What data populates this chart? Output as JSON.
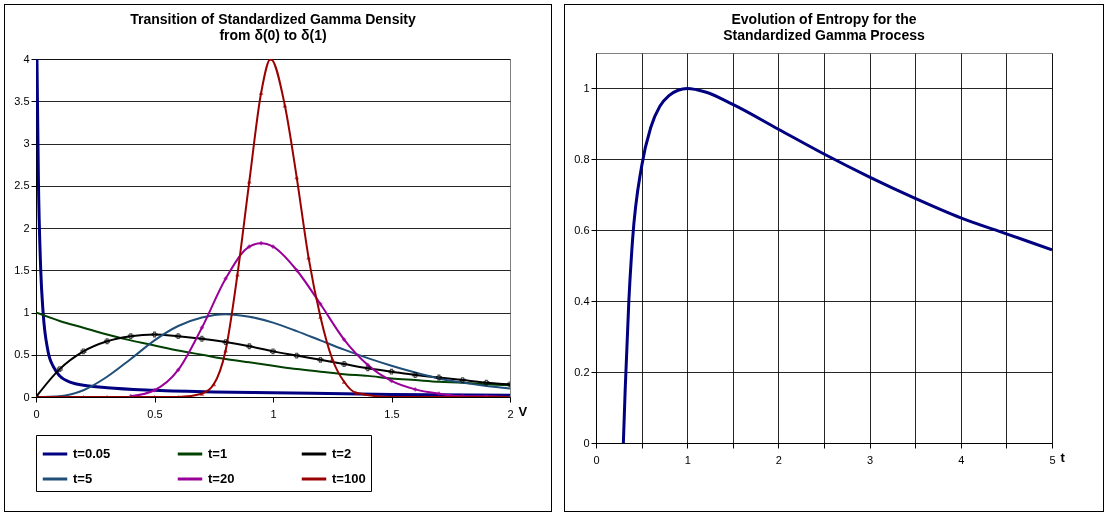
{
  "chart_data": [
    {
      "type": "line",
      "title": "Transition of Standardized Gamma Density\nfrom δ(0) to δ(1)",
      "xlabel": "V",
      "xlim": [
        0,
        2
      ],
      "xticks": [
        0,
        0.5,
        1,
        1.5,
        2
      ],
      "ylim": [
        0,
        4
      ],
      "yticks": [
        0,
        0.5,
        1,
        1.5,
        2,
        2.5,
        3,
        3.5,
        4
      ],
      "grid": "y",
      "legend": "bottom",
      "series": [
        {
          "name": "t=0.05",
          "color": "#000080",
          "marker": "none",
          "x": [
            0.004,
            0.01,
            0.02,
            0.03,
            0.05,
            0.075,
            0.1,
            0.15,
            0.2,
            0.3,
            0.5,
            0.75,
            1,
            1.5,
            2
          ],
          "values": [
            4,
            2.6,
            1.5,
            1.0,
            0.55,
            0.35,
            0.25,
            0.17,
            0.14,
            0.11,
            0.08,
            0.06,
            0.05,
            0.03,
            0.02
          ]
        },
        {
          "name": "t=1",
          "color": "#004000",
          "marker": "none",
          "x": [
            0,
            0.1,
            0.2,
            0.3,
            0.4,
            0.5,
            0.6,
            0.7,
            0.8,
            0.9,
            1,
            1.1,
            1.2,
            1.3,
            1.4,
            1.5,
            1.6,
            1.7,
            1.8,
            1.9,
            2
          ],
          "values": [
            1,
            0.9,
            0.82,
            0.74,
            0.67,
            0.61,
            0.55,
            0.5,
            0.45,
            0.41,
            0.37,
            0.33,
            0.3,
            0.27,
            0.25,
            0.22,
            0.2,
            0.18,
            0.17,
            0.15,
            0.14
          ]
        },
        {
          "name": "t=2",
          "color": "#000000",
          "marker": "cross",
          "x": [
            0,
            0.1,
            0.2,
            0.3,
            0.4,
            0.5,
            0.6,
            0.7,
            0.8,
            0.9,
            1,
            1.1,
            1.2,
            1.3,
            1.4,
            1.5,
            1.6,
            1.7,
            1.8,
            1.9,
            2
          ],
          "values": [
            0,
            0.33,
            0.54,
            0.66,
            0.72,
            0.74,
            0.72,
            0.69,
            0.65,
            0.6,
            0.54,
            0.49,
            0.44,
            0.39,
            0.34,
            0.3,
            0.26,
            0.23,
            0.2,
            0.17,
            0.15
          ]
        },
        {
          "name": "t=5",
          "color": "#1f4e79",
          "marker": "none",
          "x": [
            0,
            0.1,
            0.2,
            0.3,
            0.4,
            0.5,
            0.6,
            0.7,
            0.8,
            0.9,
            1,
            1.1,
            1.2,
            1.3,
            1.4,
            1.5,
            1.6,
            1.7,
            1.8,
            1.9,
            2
          ],
          "values": [
            0,
            0.01,
            0.08,
            0.24,
            0.45,
            0.67,
            0.84,
            0.94,
            0.98,
            0.95,
            0.88,
            0.78,
            0.67,
            0.56,
            0.46,
            0.37,
            0.29,
            0.22,
            0.17,
            0.13,
            0.1
          ]
        },
        {
          "name": "t=20",
          "color": "#990099",
          "marker": "diamond",
          "x": [
            0.4,
            0.5,
            0.6,
            0.7,
            0.8,
            0.9,
            0.95,
            1,
            1.1,
            1.2,
            1.3,
            1.4,
            1.5,
            1.6,
            1.7,
            1.8,
            1.9,
            2
          ],
          "values": [
            0.01,
            0.08,
            0.32,
            0.82,
            1.4,
            1.78,
            1.82,
            1.78,
            1.5,
            1.1,
            0.68,
            0.38,
            0.19,
            0.09,
            0.04,
            0.01,
            0.01,
            0
          ]
        },
        {
          "name": "t=100",
          "color": "#990000",
          "marker": "triangle",
          "x": [
            0,
            0.1,
            0.2,
            0.3,
            0.4,
            0.5,
            0.6,
            0.7,
            0.75,
            0.8,
            0.85,
            0.9,
            0.95,
            0.99,
            1.05,
            1.1,
            1.15,
            1.2,
            1.25,
            1.3,
            1.35,
            1.5,
            1.6,
            1.7,
            1.8,
            1.9,
            2
          ],
          "values": [
            0,
            0,
            0,
            0,
            0,
            0,
            0,
            0.04,
            0.15,
            0.55,
            1.45,
            2.55,
            3.6,
            4,
            3.45,
            2.6,
            1.65,
            0.95,
            0.45,
            0.18,
            0.05,
            0,
            0,
            0,
            0,
            0,
            0
          ]
        }
      ]
    },
    {
      "type": "line",
      "title": "Evolution of Entropy for the\nStandardized Gamma Process",
      "xlabel": "t",
      "xlim": [
        0,
        5
      ],
      "xticks": [
        0,
        {
          "value": 0.5,
          "label": null
        },
        1,
        {
          "value": 1.5,
          "label": null
        },
        2,
        {
          "value": 2.5,
          "label": null
        },
        3,
        {
          "value": 3.5,
          "label": null
        },
        4,
        {
          "value": 4.5,
          "label": null
        },
        5
      ],
      "ylim": [
        0,
        1.1
      ],
      "yticks": [
        0,
        0.2,
        0.4,
        0.6,
        0.8,
        1
      ],
      "grid": true,
      "legend": false,
      "series": [
        {
          "color": "#000080",
          "marker": "none",
          "x": [
            0.3,
            0.32,
            0.36,
            0.4,
            0.5,
            0.6,
            0.7,
            0.8,
            0.9,
            1,
            1.2,
            1.5,
            2,
            2.5,
            3,
            3.5,
            4,
            4.5,
            5
          ],
          "values": [
            0,
            0.15,
            0.4,
            0.57,
            0.78,
            0.89,
            0.95,
            0.98,
            0.995,
            1,
            0.99,
            0.955,
            0.885,
            0.815,
            0.75,
            0.69,
            0.635,
            0.59,
            0.545
          ]
        }
      ]
    }
  ]
}
